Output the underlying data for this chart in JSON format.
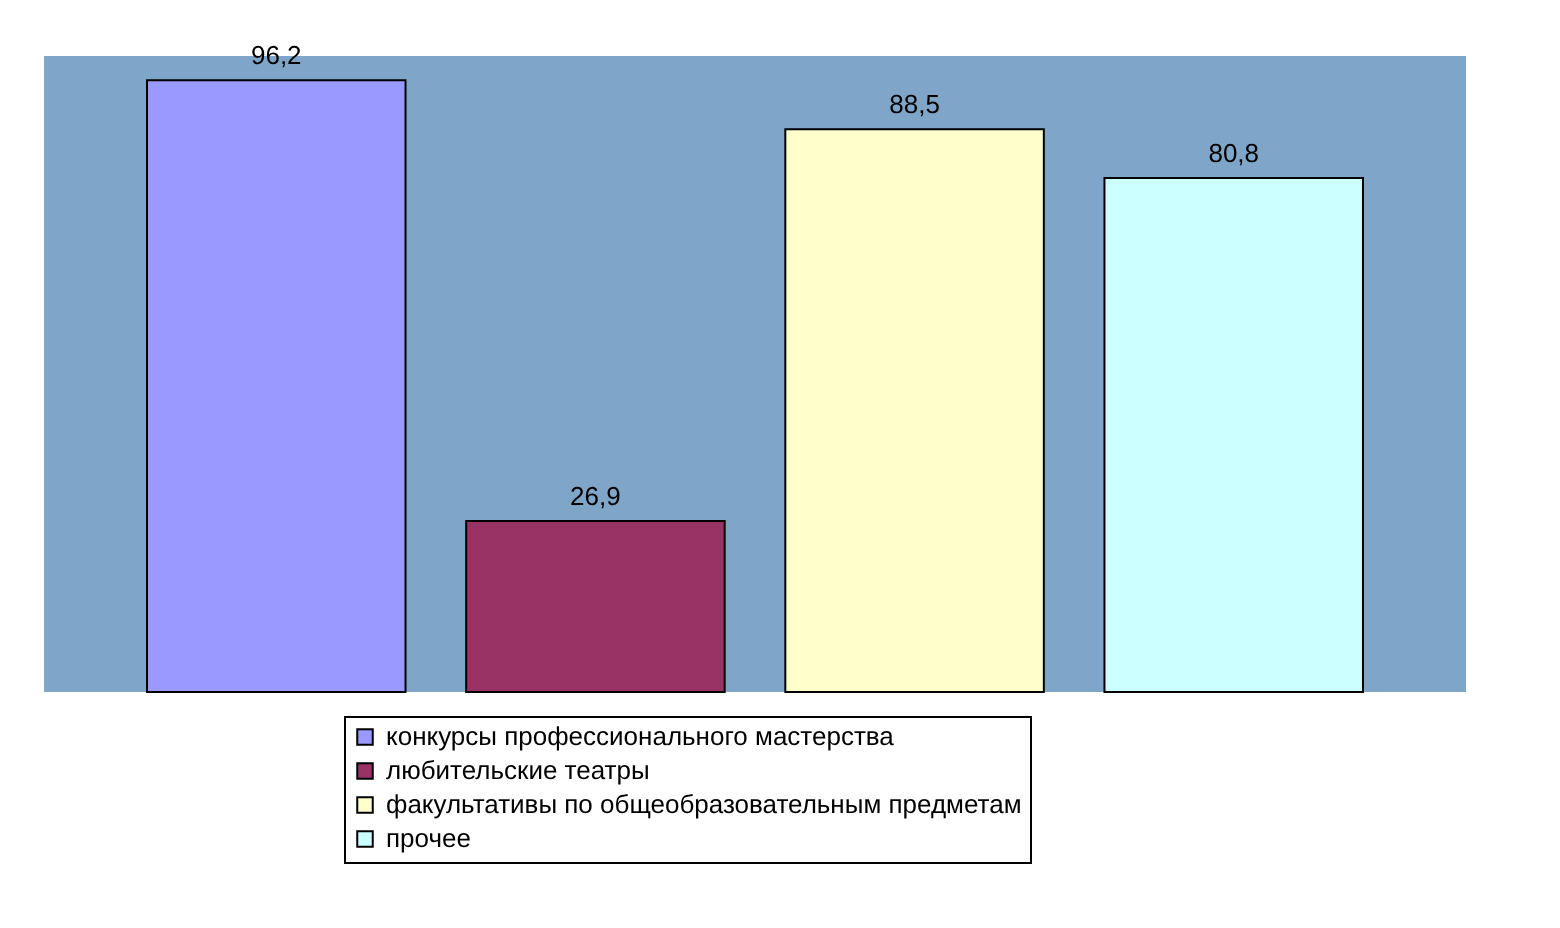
{
  "chart_data": {
    "type": "bar",
    "categories": [
      null
    ],
    "series": [
      {
        "name": "конкурсы профессионального мастерства",
        "color": "#9999ff",
        "values": [
          96.2
        ],
        "value_labels": [
          "96,2"
        ]
      },
      {
        "name": "любительские театры",
        "color": "#993366",
        "values": [
          26.9
        ],
        "value_labels": [
          "26,9"
        ]
      },
      {
        "name": "факультативы по общеобразовательным предметам",
        "color": "#ffffcc",
        "values": [
          88.5
        ],
        "value_labels": [
          "88,5"
        ]
      },
      {
        "name": "прочее",
        "color": "#ccffff",
        "values": [
          80.8
        ],
        "value_labels": [
          "80,8"
        ]
      }
    ],
    "legend": "bottom",
    "tick_labels": false,
    "grid": false
  }
}
